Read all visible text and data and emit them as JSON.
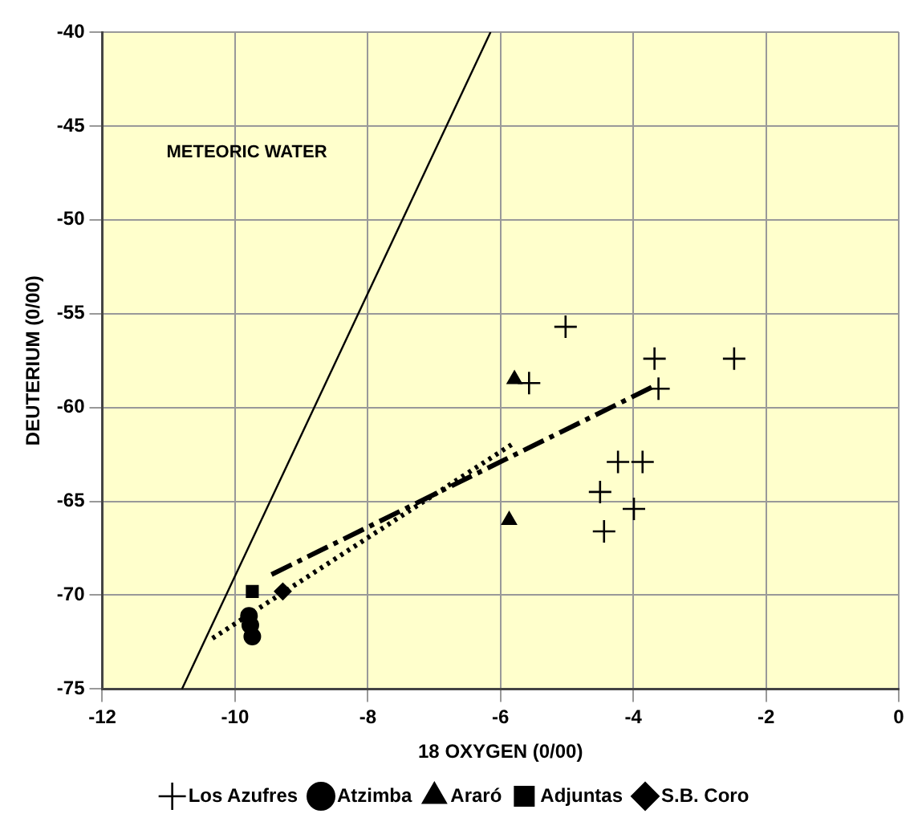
{
  "chart_data": {
    "type": "scatter",
    "xlabel": "18 OXYGEN (0/00)",
    "ylabel": "DEUTERIUM (0/00)",
    "xlim": [
      -12,
      0
    ],
    "xticks": [
      -12,
      -10,
      -8,
      -6,
      -4,
      -2,
      0
    ],
    "ylim": [
      -75,
      -40
    ],
    "yticks": [
      -75,
      -70,
      -65,
      -60,
      -55,
      -50,
      -45,
      -40
    ],
    "grid": true,
    "legend": "bottom",
    "annotations": [
      "METEORIC WATER"
    ],
    "series": [
      {
        "name": "Los Azufres",
        "color": "#000000",
        "marker": "cross",
        "x": [
          -5.02,
          -3.68,
          -2.48,
          -5.57,
          -3.62,
          -4.23,
          -3.86,
          -4.5,
          -3.99,
          -4.44
        ],
        "values": [
          -55.7,
          -57.4,
          -57.4,
          -58.7,
          -59.0,
          -62.9,
          -62.9,
          -64.5,
          -65.4,
          -66.6
        ]
      },
      {
        "name": "Atzimba",
        "color": "#000000",
        "marker": "circle",
        "x": [
          -9.79,
          -9.77,
          -9.74
        ],
        "values": [
          -71.1,
          -71.6,
          -72.2
        ]
      },
      {
        "name": "Araró",
        "color": "#000000",
        "marker": "triangle",
        "x": [
          -5.79,
          -5.87
        ],
        "values": [
          -58.5,
          -66.0
        ]
      },
      {
        "name": "Adjuntas",
        "color": "#000000",
        "marker": "square",
        "x": [
          -9.74
        ],
        "values": [
          -69.8
        ]
      },
      {
        "name": "S.B. Coro",
        "color": "#000000",
        "marker": "diamond",
        "x": [
          -9.28
        ],
        "values": [
          -69.8
        ]
      },
      {
        "type": "line",
        "color": "#000000",
        "marker": "none",
        "line_style": "solid",
        "x": [
          -10.8,
          -6.15
        ],
        "values": [
          -75,
          -40
        ]
      },
      {
        "type": "line",
        "color": "#000000",
        "marker": "none",
        "line_style": "dashed",
        "x": [
          -9.45,
          -3.65
        ],
        "values": [
          -68.9,
          -58.8
        ]
      },
      {
        "type": "line",
        "color": "#000000",
        "marker": "none",
        "line_style": "dotted",
        "x": [
          -10.34,
          -5.8
        ],
        "values": [
          -72.3,
          -61.9
        ]
      }
    ]
  }
}
